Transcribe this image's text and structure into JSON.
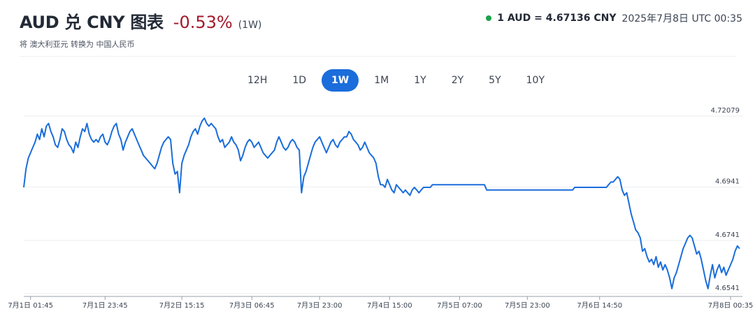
{
  "header": {
    "title": "AUD 兑 CNY 图表",
    "change": "-0.53%",
    "period": "(1W)",
    "subtitle": "将 澳大利亚元 转换为 中国人民币"
  },
  "rate": {
    "value": "1 AUD = 4.67136 CNY",
    "time": "2025年7月8日 UTC 00:35",
    "status_color": "#1aa34a"
  },
  "tabs": [
    {
      "label": "12H",
      "active": false
    },
    {
      "label": "1D",
      "active": false
    },
    {
      "label": "1W",
      "active": true
    },
    {
      "label": "1M",
      "active": false
    },
    {
      "label": "1Y",
      "active": false
    },
    {
      "label": "2Y",
      "active": false
    },
    {
      "label": "5Y",
      "active": false
    },
    {
      "label": "10Y",
      "active": false
    }
  ],
  "colors": {
    "line": "#1a6ddb",
    "accent": "#1a6ddb",
    "negative": "#a31a2c"
  },
  "chart_data": {
    "type": "line",
    "title": "",
    "xlabel": "",
    "ylabel": "",
    "ylim": [
      4.6541,
      4.72079
    ],
    "grid": true,
    "y_tick_labels": [
      "4.72079",
      "4.6941",
      "4.6741",
      "4.6541"
    ],
    "y_ticks": [
      4.72079,
      4.6941,
      4.6741,
      4.6541
    ],
    "x_tick_labels": [
      "7月1日 01:45",
      "7月1日 23:45",
      "7月2日 15:15",
      "7月3日 06:45",
      "7月3日 23:00",
      "7月4日 15:00",
      "7月5日 07:00",
      "7月5日 23:00",
      "7月6日 14:50",
      "7月8日 00:35"
    ],
    "x_tick_index": [
      3,
      36,
      70,
      101,
      131,
      162,
      193,
      223,
      255,
      313
    ],
    "series": [
      {
        "values": [
          4.694,
          4.701,
          4.705,
          4.707,
          4.709,
          4.711,
          4.714,
          4.712,
          4.716,
          4.713,
          4.717,
          4.718,
          4.715,
          4.713,
          4.71,
          4.709,
          4.712,
          4.716,
          4.715,
          4.712,
          4.71,
          4.709,
          4.707,
          4.711,
          4.709,
          4.713,
          4.716,
          4.715,
          4.718,
          4.714,
          4.712,
          4.711,
          4.712,
          4.711,
          4.713,
          4.714,
          4.711,
          4.71,
          4.712,
          4.715,
          4.717,
          4.718,
          4.714,
          4.712,
          4.708,
          4.711,
          4.713,
          4.715,
          4.716,
          4.714,
          4.712,
          4.71,
          4.708,
          4.706,
          4.705,
          4.704,
          4.703,
          4.702,
          4.701,
          4.703,
          4.706,
          4.709,
          4.711,
          4.712,
          4.713,
          4.712,
          4.703,
          4.699,
          4.7,
          4.692,
          4.703,
          4.706,
          4.708,
          4.71,
          4.713,
          4.715,
          4.716,
          4.714,
          4.717,
          4.719,
          4.72,
          4.718,
          4.717,
          4.718,
          4.717,
          4.716,
          4.713,
          4.711,
          4.712,
          4.709,
          4.71,
          4.711,
          4.713,
          4.711,
          4.71,
          4.708,
          4.704,
          4.706,
          4.709,
          4.711,
          4.712,
          4.711,
          4.709,
          4.71,
          4.711,
          4.709,
          4.707,
          4.706,
          4.705,
          4.706,
          4.707,
          4.708,
          4.711,
          4.713,
          4.711,
          4.709,
          4.708,
          4.709,
          4.711,
          4.712,
          4.711,
          4.709,
          4.708,
          4.692,
          4.698,
          4.7,
          4.703,
          4.706,
          4.709,
          4.711,
          4.712,
          4.713,
          4.711,
          4.709,
          4.707,
          4.709,
          4.711,
          4.712,
          4.71,
          4.709,
          4.711,
          4.712,
          4.713,
          4.713,
          4.715,
          4.714,
          4.712,
          4.711,
          4.71,
          4.708,
          4.709,
          4.711,
          4.709,
          4.707,
          4.706,
          4.705,
          4.703,
          4.698,
          4.695,
          4.695,
          4.694,
          4.697,
          4.695,
          4.693,
          4.692,
          4.695,
          4.694,
          4.693,
          4.692,
          4.693,
          4.692,
          4.691,
          4.693,
          4.694,
          4.693,
          4.692,
          4.693,
          4.694,
          4.694,
          4.694,
          4.694,
          4.695,
          4.695,
          4.695,
          4.695,
          4.695,
          4.695,
          4.695,
          4.695,
          4.695,
          4.695,
          4.695,
          4.695,
          4.695,
          4.695,
          4.695,
          4.695,
          4.695,
          4.695,
          4.695,
          4.695,
          4.695,
          4.695,
          4.695,
          4.695,
          4.693,
          4.693,
          4.693,
          4.693,
          4.693,
          4.693,
          4.693,
          4.693,
          4.693,
          4.693,
          4.693,
          4.693,
          4.693,
          4.693,
          4.693,
          4.693,
          4.693,
          4.693,
          4.693,
          4.693,
          4.693,
          4.693,
          4.693,
          4.693,
          4.693,
          4.693,
          4.693,
          4.693,
          4.693,
          4.693,
          4.693,
          4.693,
          4.693,
          4.693,
          4.693,
          4.693,
          4.693,
          4.693,
          4.693,
          4.694,
          4.694,
          4.694,
          4.694,
          4.694,
          4.694,
          4.694,
          4.694,
          4.694,
          4.694,
          4.694,
          4.694,
          4.694,
          4.694,
          4.694,
          4.695,
          4.696,
          4.696,
          4.697,
          4.698,
          4.697,
          4.693,
          4.691,
          4.692,
          4.688,
          4.684,
          4.681,
          4.678,
          4.677,
          4.675,
          4.67,
          4.671,
          4.668,
          4.666,
          4.667,
          4.665,
          4.668,
          4.664,
          4.666,
          4.663,
          4.665,
          4.663,
          4.66,
          4.656,
          4.66,
          4.662,
          4.665,
          4.668,
          4.671,
          4.673,
          4.675,
          4.676,
          4.675,
          4.672,
          4.669,
          4.67,
          4.667,
          4.663,
          4.659,
          4.656,
          4.661,
          4.665,
          4.66,
          4.663,
          4.665,
          4.662,
          4.664,
          4.661,
          4.663,
          4.665,
          4.667,
          4.67,
          4.672,
          4.671
        ]
      }
    ]
  }
}
